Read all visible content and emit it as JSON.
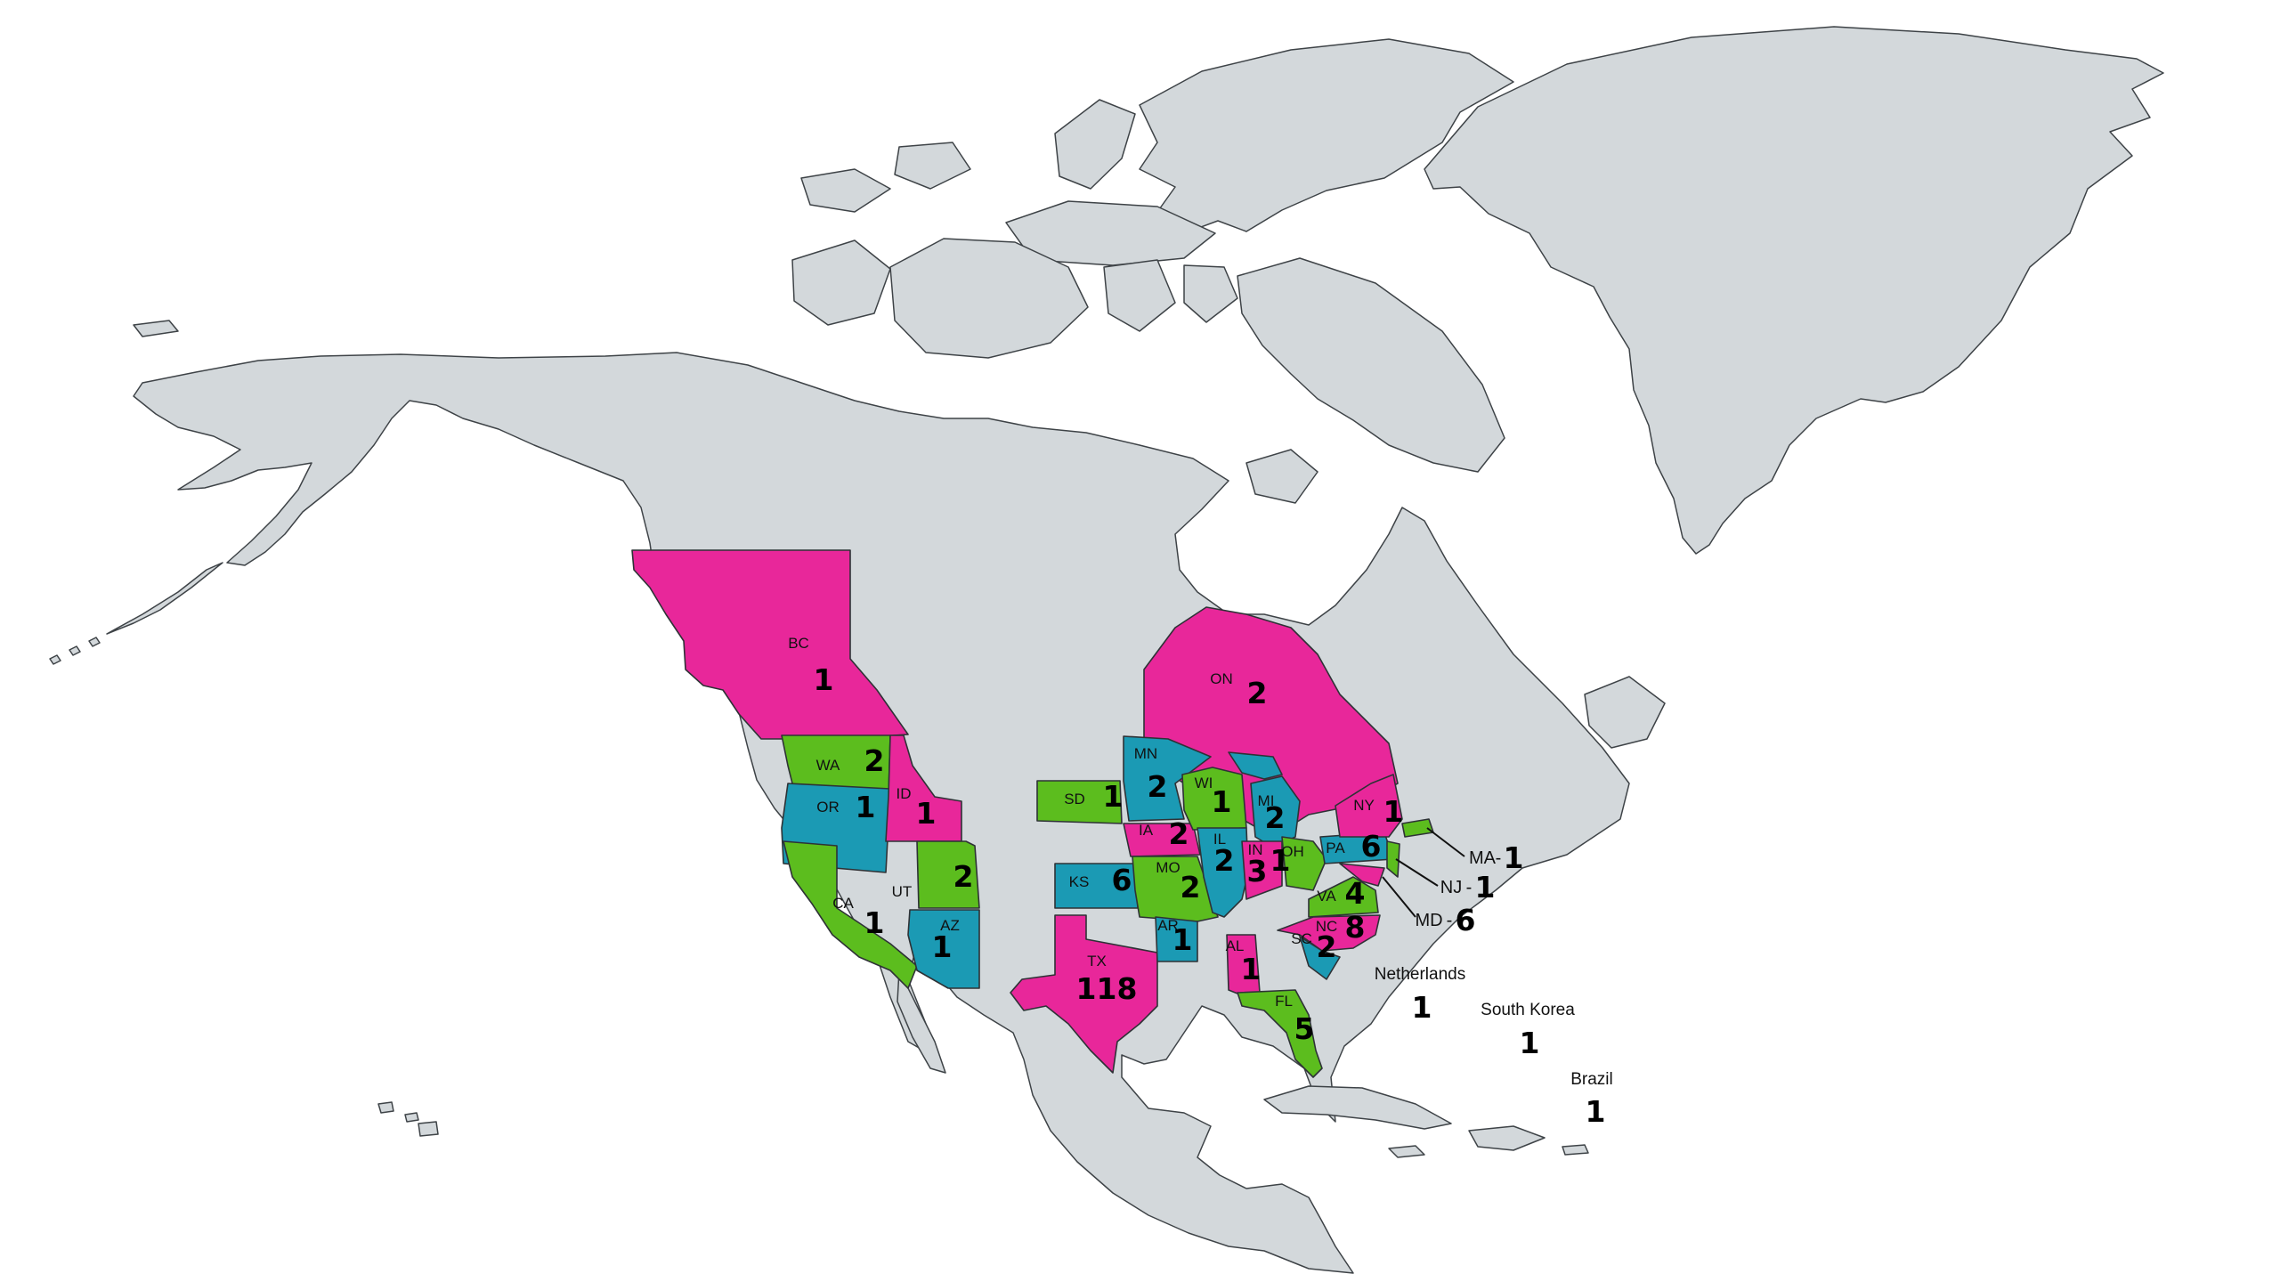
{
  "colors": {
    "land": "#d3d8db",
    "border": "#3e4347",
    "pink": "#e8279a",
    "green": "#5cbd1e",
    "teal": "#1b9ab4"
  },
  "regions": [
    {
      "code": "BC",
      "count": "1",
      "color": "pink"
    },
    {
      "code": "ON",
      "count": "2",
      "color": "pink"
    },
    {
      "code": "WA",
      "count": "2",
      "color": "green"
    },
    {
      "code": "OR",
      "count": "1",
      "color": "teal"
    },
    {
      "code": "ID",
      "count": "1",
      "color": "pink"
    },
    {
      "code": "CA",
      "count": "1",
      "color": "green"
    },
    {
      "code": "UT",
      "count": "2",
      "color": "green"
    },
    {
      "code": "AZ",
      "count": "1",
      "color": "teal"
    },
    {
      "code": "SD",
      "count": "1",
      "color": "green"
    },
    {
      "code": "MN",
      "count": "2",
      "color": "teal"
    },
    {
      "code": "IA",
      "count": "2",
      "color": "pink"
    },
    {
      "code": "KS",
      "count": "6",
      "color": "teal"
    },
    {
      "code": "MO",
      "count": "2",
      "color": "green"
    },
    {
      "code": "TX",
      "count": "118",
      "color": "pink"
    },
    {
      "code": "AR",
      "count": "1",
      "color": "teal"
    },
    {
      "code": "WI",
      "count": "1",
      "color": "green"
    },
    {
      "code": "IL",
      "count": "2",
      "color": "teal"
    },
    {
      "code": "MI",
      "count": "2",
      "color": "teal"
    },
    {
      "code": "IN",
      "count": "3",
      "color": "pink"
    },
    {
      "code": "OH",
      "count": "1",
      "color": "green"
    },
    {
      "code": "PA",
      "count": "6",
      "color": "teal"
    },
    {
      "code": "NY",
      "count": "1",
      "color": "pink"
    },
    {
      "code": "VA",
      "count": "4",
      "color": "green"
    },
    {
      "code": "NC",
      "count": "8",
      "color": "pink"
    },
    {
      "code": "SC",
      "count": "2",
      "color": "teal"
    },
    {
      "code": "AL",
      "count": "1",
      "color": "pink"
    },
    {
      "code": "FL",
      "count": "5",
      "color": "green"
    }
  ],
  "callouts": [
    {
      "code": "MA",
      "count": "1",
      "color": "green"
    },
    {
      "code": "NJ",
      "count": "1",
      "color": "green"
    },
    {
      "code": "MD",
      "count": "6",
      "color": "pink"
    }
  ],
  "international": [
    {
      "name": "Netherlands",
      "count": "1"
    },
    {
      "name": "South Korea",
      "count": "1"
    },
    {
      "name": "Brazil",
      "count": "1"
    }
  ]
}
